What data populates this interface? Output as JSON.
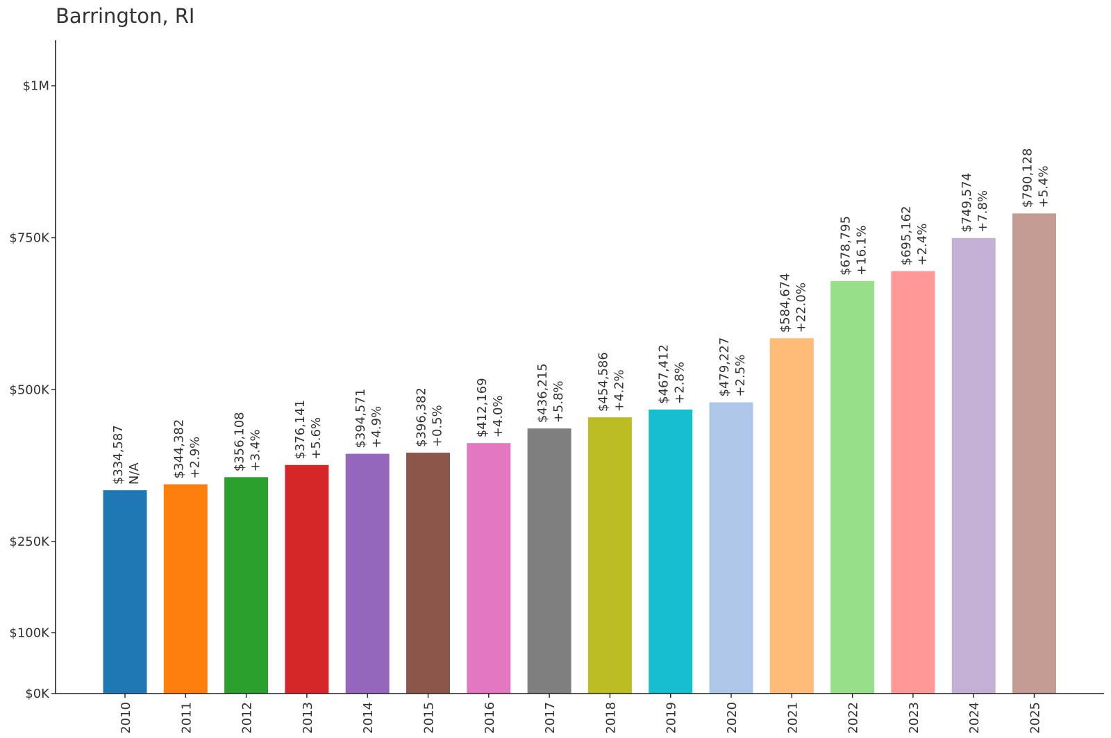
{
  "chart_data": {
    "type": "bar",
    "title": "Barrington, RI",
    "xlabel": "",
    "ylabel": "",
    "ylim": [
      0,
      1075000
    ],
    "grid": false,
    "yticks": [
      {
        "value": 0,
        "label": "$0K"
      },
      {
        "value": 100000,
        "label": "$100K"
      },
      {
        "value": 250000,
        "label": "$250K"
      },
      {
        "value": 500000,
        "label": "$500K"
      },
      {
        "value": 750000,
        "label": "$750K"
      },
      {
        "value": 1000000,
        "label": "$1M"
      }
    ],
    "categories": [
      "2010",
      "2011",
      "2012",
      "2013",
      "2014",
      "2015",
      "2016",
      "2017",
      "2018",
      "2019",
      "2020",
      "2021",
      "2022",
      "2023",
      "2024",
      "2025"
    ],
    "values": [
      334587,
      344382,
      356108,
      376141,
      394571,
      396382,
      412169,
      436215,
      454586,
      467412,
      479227,
      584674,
      678795,
      695162,
      749574,
      790128
    ],
    "value_labels": [
      "$334,587",
      "$344,382",
      "$356,108",
      "$376,141",
      "$394,571",
      "$396,382",
      "$412,169",
      "$436,215",
      "$454,586",
      "$467,412",
      "$479,227",
      "$584,674",
      "$678,795",
      "$695,162",
      "$749,574",
      "$790,128"
    ],
    "change_labels": [
      "N/A",
      "+2.9%",
      "+3.4%",
      "+5.6%",
      "+4.9%",
      "+0.5%",
      "+4.0%",
      "+5.8%",
      "+4.2%",
      "+2.8%",
      "+2.5%",
      "+22.0%",
      "+16.1%",
      "+2.4%",
      "+7.8%",
      "+5.4%"
    ],
    "colors": [
      "#1f77b4",
      "#ff7f0e",
      "#2ca02c",
      "#d62728",
      "#9467bd",
      "#8c564b",
      "#e377c2",
      "#7f7f7f",
      "#bcbd22",
      "#17becf",
      "#aec7e8",
      "#ffbb78",
      "#98df8a",
      "#ff9896",
      "#c5b0d5",
      "#c49c94"
    ]
  }
}
